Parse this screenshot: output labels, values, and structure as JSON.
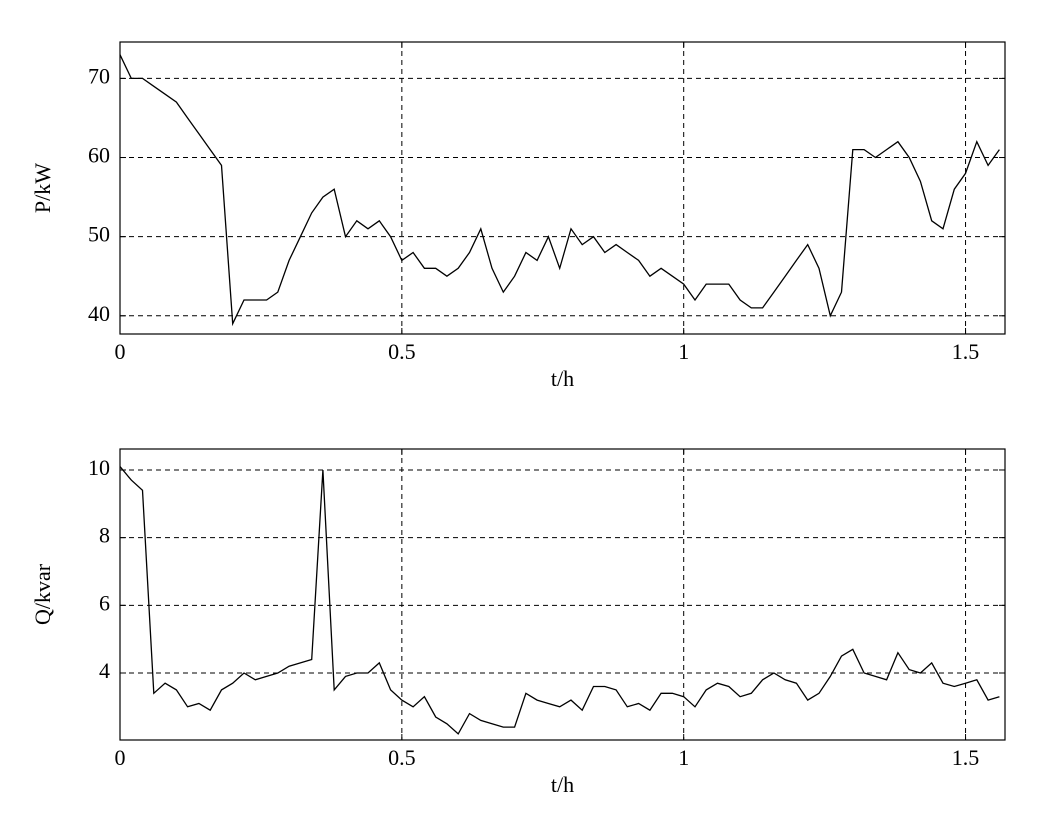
{
  "chart_data": [
    {
      "type": "line",
      "ylabel": "P/kW",
      "xlabel": "t/h",
      "color": "#000000",
      "grid": true,
      "xlim": [
        0,
        1.57
      ],
      "xticks": [
        0,
        0.5,
        1,
        1.5
      ],
      "ylim": [
        37.7,
        74.6
      ],
      "yticks": [
        40,
        50,
        60,
        70
      ],
      "x": [
        0,
        0.02,
        0.04,
        0.06,
        0.08,
        0.1,
        0.12,
        0.14,
        0.16,
        0.18,
        0.2,
        0.22,
        0.24,
        0.26,
        0.28,
        0.3,
        0.32,
        0.34,
        0.36,
        0.38,
        0.4,
        0.42,
        0.44,
        0.46,
        0.48,
        0.5,
        0.52,
        0.54,
        0.56,
        0.58,
        0.6,
        0.62,
        0.64,
        0.66,
        0.68,
        0.7,
        0.72,
        0.74,
        0.76,
        0.78,
        0.8,
        0.82,
        0.84,
        0.86,
        0.88,
        0.9,
        0.92,
        0.94,
        0.96,
        0.98,
        1,
        1.02,
        1.04,
        1.06,
        1.08,
        1.1,
        1.12,
        1.14,
        1.16,
        1.18,
        1.2,
        1.22,
        1.24,
        1.26,
        1.28,
        1.3,
        1.32,
        1.34,
        1.36,
        1.38,
        1.4,
        1.42,
        1.44,
        1.46,
        1.48,
        1.5,
        1.52,
        1.54,
        1.56
      ],
      "values": [
        73,
        70,
        70,
        69,
        68,
        67,
        65,
        63,
        61,
        59,
        39,
        42,
        42,
        42,
        43,
        47,
        50,
        53,
        55,
        56,
        50,
        52,
        51,
        52,
        50,
        47,
        48,
        46,
        46,
        45,
        46,
        48,
        51,
        46,
        43,
        45,
        48,
        47,
        50,
        46,
        51,
        49,
        50,
        48,
        49,
        48,
        47,
        45,
        46,
        45,
        44,
        42,
        44,
        44,
        44,
        42,
        41,
        41,
        43,
        45,
        47,
        49,
        46,
        40,
        43,
        61,
        61,
        60,
        61,
        62,
        60,
        57,
        52,
        51,
        56,
        58,
        62,
        59,
        61
      ]
    },
    {
      "type": "line",
      "ylabel": "Q/kvar",
      "xlabel": "t/h",
      "color": "#000000",
      "grid": true,
      "xlim": [
        0,
        1.57
      ],
      "xticks": [
        0,
        0.5,
        1,
        1.5
      ],
      "ylim": [
        2.02,
        10.62
      ],
      "yticks": [
        4,
        6,
        8,
        10
      ],
      "x": [
        0,
        0.02,
        0.04,
        0.06,
        0.08,
        0.1,
        0.12,
        0.14,
        0.16,
        0.18,
        0.2,
        0.22,
        0.24,
        0.26,
        0.28,
        0.3,
        0.32,
        0.34,
        0.36,
        0.38,
        0.4,
        0.42,
        0.44,
        0.46,
        0.48,
        0.5,
        0.52,
        0.54,
        0.56,
        0.58,
        0.6,
        0.62,
        0.64,
        0.66,
        0.68,
        0.7,
        0.72,
        0.74,
        0.76,
        0.78,
        0.8,
        0.82,
        0.84,
        0.86,
        0.88,
        0.9,
        0.92,
        0.94,
        0.96,
        0.98,
        1,
        1.02,
        1.04,
        1.06,
        1.08,
        1.1,
        1.12,
        1.14,
        1.16,
        1.18,
        1.2,
        1.22,
        1.24,
        1.26,
        1.28,
        1.3,
        1.32,
        1.34,
        1.36,
        1.38,
        1.4,
        1.42,
        1.44,
        1.46,
        1.48,
        1.5,
        1.52,
        1.54,
        1.56
      ],
      "values": [
        10.1,
        9.7,
        9.4,
        3.4,
        3.7,
        3.5,
        3.0,
        3.1,
        2.9,
        3.5,
        3.7,
        4.0,
        3.8,
        3.9,
        4.0,
        4.2,
        4.3,
        4.4,
        10.0,
        3.5,
        3.9,
        4.0,
        4.0,
        4.3,
        3.5,
        3.2,
        3.0,
        3.3,
        2.7,
        2.5,
        2.2,
        2.8,
        2.6,
        2.5,
        2.4,
        2.4,
        3.4,
        3.2,
        3.1,
        3.0,
        3.2,
        2.9,
        3.6,
        3.6,
        3.5,
        3.0,
        3.1,
        2.9,
        3.4,
        3.4,
        3.3,
        3.0,
        3.5,
        3.7,
        3.6,
        3.3,
        3.4,
        3.8,
        4.0,
        3.8,
        3.7,
        3.2,
        3.4,
        3.9,
        4.5,
        4.7,
        4.0,
        3.9,
        3.8,
        4.6,
        4.1,
        4.0,
        4.3,
        3.7,
        3.6,
        3.7,
        3.8,
        3.2,
        3.3
      ]
    }
  ]
}
